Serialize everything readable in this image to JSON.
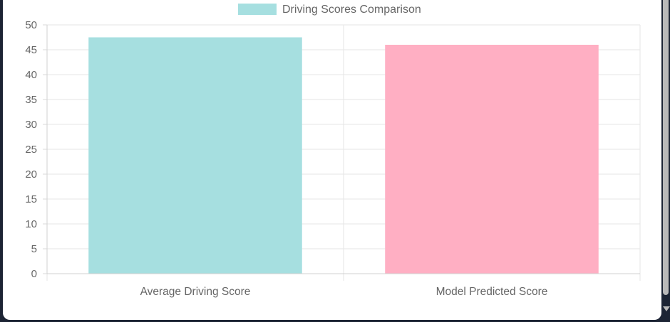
{
  "chart_data": {
    "type": "bar",
    "legend": {
      "label": "Driving Scores Comparison",
      "swatch_color": "#a6dfe0",
      "placement": "top"
    },
    "categories": [
      "Average Driving Score",
      "Model Predicted Score"
    ],
    "values": [
      47.5,
      46
    ],
    "bar_colors": [
      "#a6dfe0",
      "#ffafc3"
    ],
    "ylim": [
      0,
      50
    ],
    "yticks": [
      "0",
      "5",
      "10",
      "15",
      "20",
      "25",
      "30",
      "35",
      "40",
      "45",
      "50"
    ],
    "grid": true
  }
}
